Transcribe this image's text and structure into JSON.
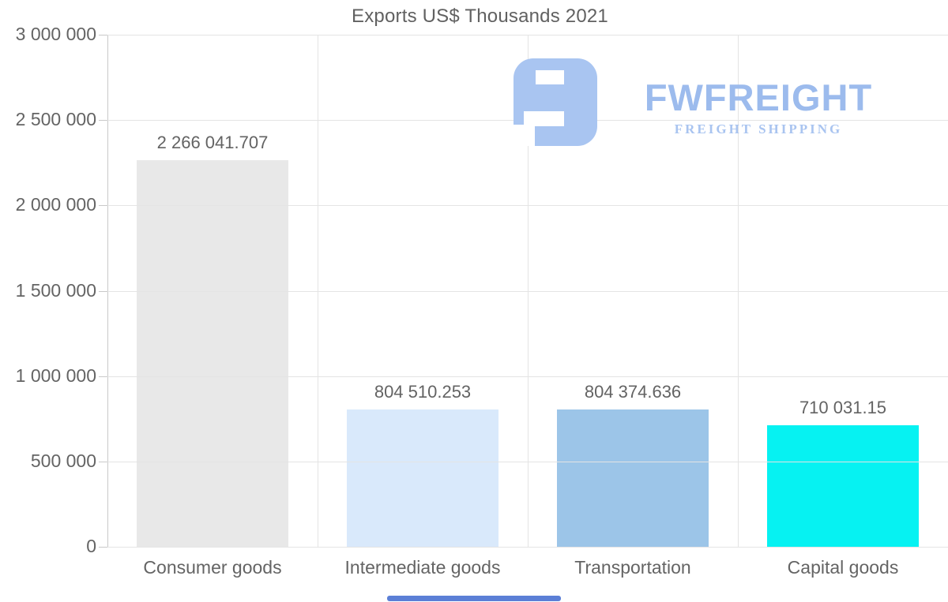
{
  "chart_data": {
    "type": "bar",
    "title": "Exports US$ Thousands 2021",
    "categories": [
      "Consumer goods",
      "Intermediate goods",
      "Transportation",
      "Capital goods"
    ],
    "values": [
      2266041.707,
      804510.253,
      804374.636,
      710031.15
    ],
    "value_labels": [
      "2 266 041.707",
      "804 510.253",
      "804 374.636",
      "710 031.15"
    ],
    "bar_colors": [
      "#e8e8e8",
      "#d9e9fb",
      "#9cc5e8",
      "#06f2f2"
    ],
    "xlabel": "",
    "ylabel": "",
    "ylim": [
      0,
      3000000
    ],
    "ytick_step": 500000,
    "ytick_labels": [
      "3 000 000",
      "2 500 000",
      "2 000 000",
      "1 500 000",
      "1 000 000",
      "500 000",
      "0"
    ],
    "grid": true,
    "legend": false
  },
  "watermark": {
    "brand": "FWFREIGHT",
    "tagline": "FREIGHT SHIPPING",
    "brand_color": "#9cbbed",
    "mark_color": "#a9c5f1"
  },
  "colors": {
    "background": "#ffffff",
    "gridline": "#e4e4e4",
    "axis": "#c9c9c9",
    "text": "#646464",
    "scrollbar": "#5b7fd6"
  }
}
